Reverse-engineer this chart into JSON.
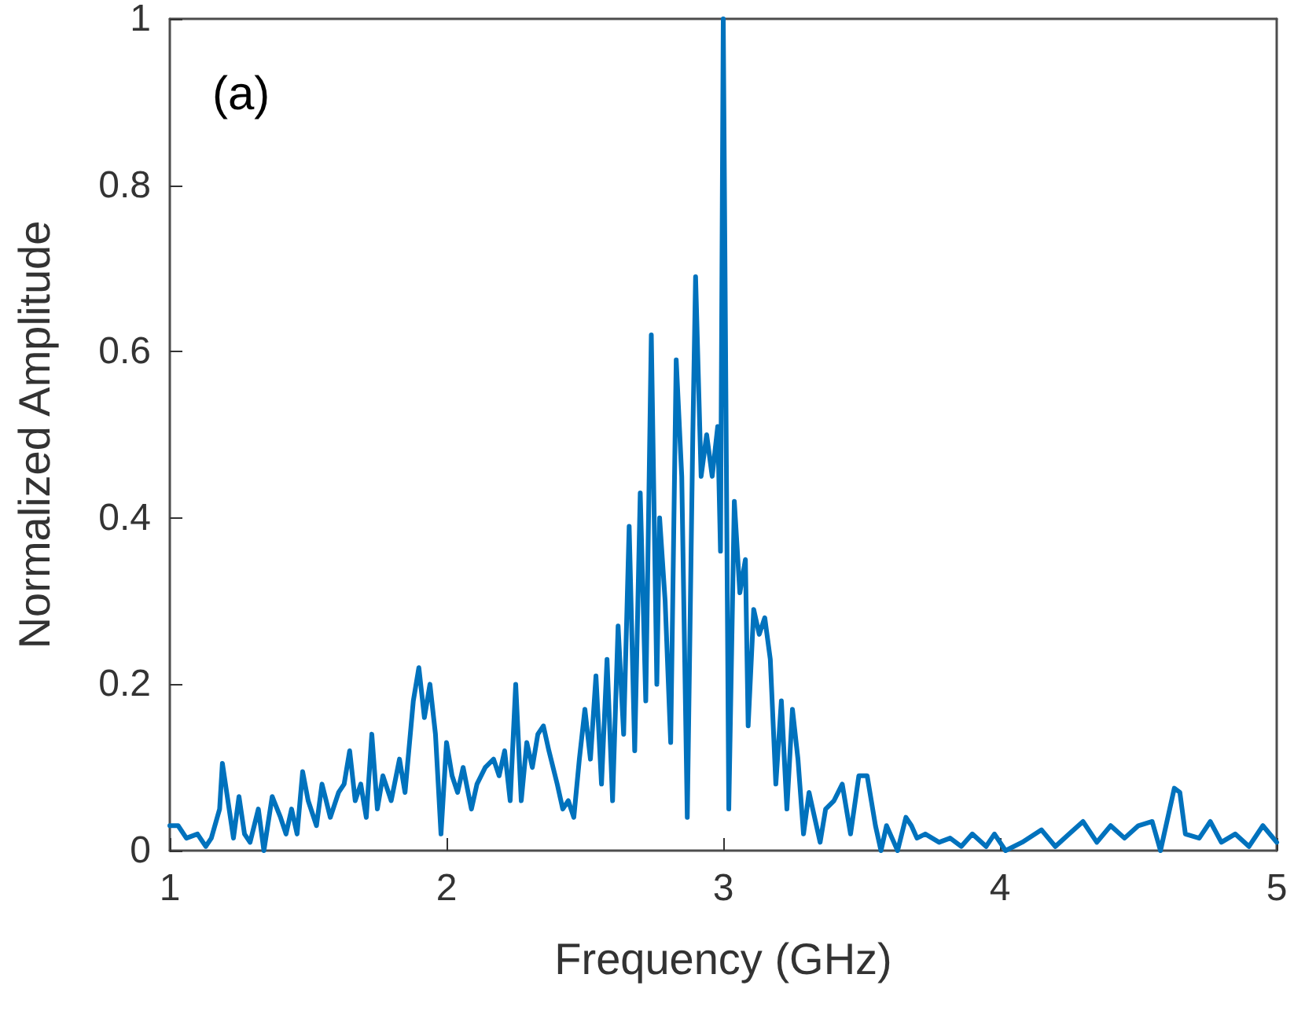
{
  "chart_data": {
    "type": "line",
    "xlabel": "Frequency (GHz)",
    "ylabel": "Normalized Amplitude",
    "annotations": [
      "(a)"
    ],
    "xlim": [
      1,
      5
    ],
    "xticks": [
      1,
      2,
      3,
      4,
      5
    ],
    "ylim": [
      0,
      1
    ],
    "yticks": [
      0,
      0.2,
      0.4,
      0.6,
      0.8,
      1
    ],
    "grid": false,
    "marker": "none",
    "line_style": "solid",
    "series": [
      {
        "color": "#0072bd",
        "x": [
          1.0,
          1.03,
          1.06,
          1.1,
          1.13,
          1.15,
          1.18,
          1.19,
          1.21,
          1.23,
          1.25,
          1.27,
          1.29,
          1.32,
          1.34,
          1.37,
          1.4,
          1.42,
          1.44,
          1.46,
          1.48,
          1.5,
          1.53,
          1.55,
          1.58,
          1.61,
          1.63,
          1.65,
          1.67,
          1.69,
          1.71,
          1.73,
          1.75,
          1.77,
          1.8,
          1.83,
          1.85,
          1.88,
          1.9,
          1.92,
          1.94,
          1.96,
          1.98,
          2.0,
          2.02,
          2.04,
          2.06,
          2.09,
          2.11,
          2.14,
          2.17,
          2.19,
          2.21,
          2.23,
          2.25,
          2.27,
          2.29,
          2.31,
          2.33,
          2.35,
          2.37,
          2.4,
          2.42,
          2.44,
          2.46,
          2.48,
          2.5,
          2.52,
          2.54,
          2.56,
          2.58,
          2.6,
          2.62,
          2.64,
          2.66,
          2.68,
          2.7,
          2.72,
          2.74,
          2.76,
          2.77,
          2.79,
          2.81,
          2.83,
          2.85,
          2.87,
          2.89,
          2.9,
          2.92,
          2.94,
          2.96,
          2.98,
          2.99,
          3.0,
          3.02,
          3.04,
          3.06,
          3.08,
          3.09,
          3.11,
          3.13,
          3.15,
          3.17,
          3.19,
          3.21,
          3.23,
          3.25,
          3.27,
          3.29,
          3.31,
          3.33,
          3.35,
          3.37,
          3.4,
          3.43,
          3.46,
          3.49,
          3.52,
          3.55,
          3.57,
          3.59,
          3.61,
          3.63,
          3.66,
          3.68,
          3.7,
          3.73,
          3.78,
          3.82,
          3.86,
          3.9,
          3.95,
          3.98,
          4.02,
          4.08,
          4.15,
          4.2,
          4.25,
          4.3,
          4.35,
          4.4,
          4.45,
          4.5,
          4.55,
          4.58,
          4.6,
          4.63,
          4.65,
          4.67,
          4.72,
          4.76,
          4.8,
          4.85,
          4.9,
          4.95,
          5.0
        ],
        "values": [
          0.03,
          0.03,
          0.015,
          0.02,
          0.005,
          0.015,
          0.05,
          0.105,
          0.06,
          0.015,
          0.065,
          0.02,
          0.01,
          0.05,
          0.0,
          0.065,
          0.04,
          0.02,
          0.05,
          0.02,
          0.095,
          0.06,
          0.03,
          0.08,
          0.04,
          0.07,
          0.08,
          0.12,
          0.06,
          0.08,
          0.04,
          0.14,
          0.05,
          0.09,
          0.06,
          0.11,
          0.07,
          0.18,
          0.22,
          0.16,
          0.2,
          0.14,
          0.02,
          0.13,
          0.09,
          0.07,
          0.1,
          0.05,
          0.08,
          0.1,
          0.11,
          0.09,
          0.12,
          0.06,
          0.2,
          0.06,
          0.13,
          0.1,
          0.14,
          0.15,
          0.12,
          0.08,
          0.05,
          0.06,
          0.04,
          0.11,
          0.17,
          0.11,
          0.21,
          0.08,
          0.23,
          0.06,
          0.27,
          0.14,
          0.39,
          0.12,
          0.43,
          0.18,
          0.62,
          0.2,
          0.4,
          0.3,
          0.13,
          0.59,
          0.45,
          0.04,
          0.5,
          0.69,
          0.45,
          0.5,
          0.45,
          0.51,
          0.36,
          1.0,
          0.05,
          0.42,
          0.31,
          0.35,
          0.15,
          0.29,
          0.26,
          0.28,
          0.23,
          0.08,
          0.18,
          0.05,
          0.17,
          0.11,
          0.02,
          0.07,
          0.04,
          0.01,
          0.05,
          0.06,
          0.08,
          0.02,
          0.09,
          0.09,
          0.03,
          0.0,
          0.03,
          0.015,
          0.0,
          0.04,
          0.03,
          0.015,
          0.02,
          0.01,
          0.015,
          0.005,
          0.02,
          0.005,
          0.02,
          0.0,
          0.01,
          0.025,
          0.005,
          0.02,
          0.035,
          0.01,
          0.03,
          0.015,
          0.03,
          0.035,
          0.0,
          0.03,
          0.075,
          0.07,
          0.02,
          0.015,
          0.035,
          0.01,
          0.02,
          0.005,
          0.03,
          0.01
        ]
      }
    ]
  }
}
